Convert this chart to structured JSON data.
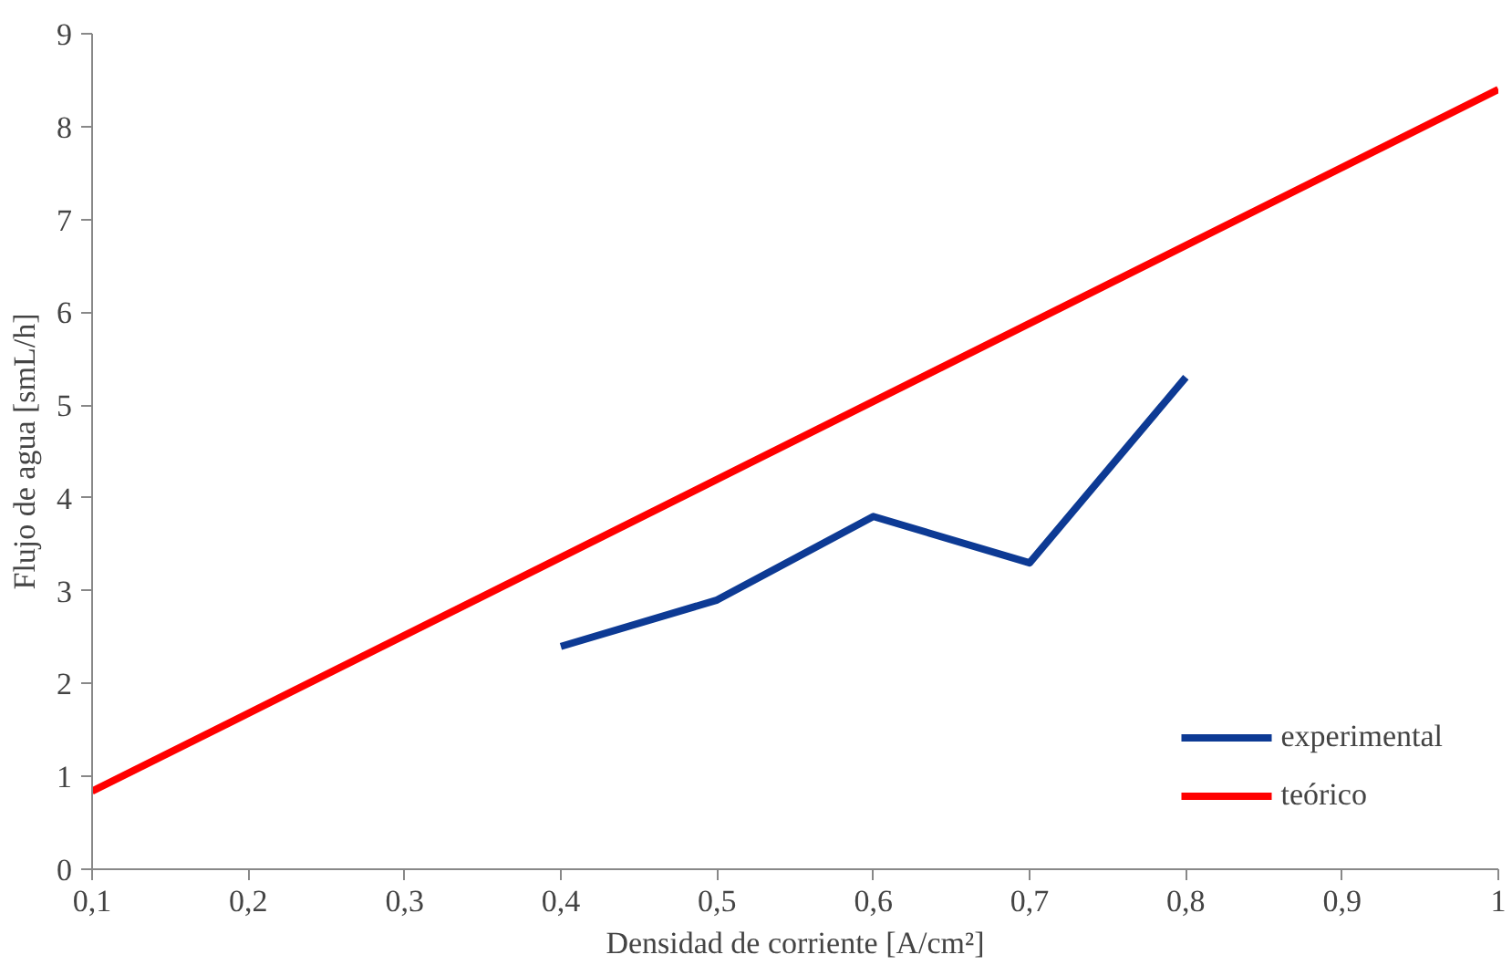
{
  "chart_data": {
    "type": "line",
    "xlabel": "Densidad de corriente [A/cm²]",
    "ylabel": "Flujo de agua [smL/h]",
    "xlim": [
      0.1,
      1
    ],
    "ylim": [
      0,
      9
    ],
    "xticks": [
      {
        "value": 0.1,
        "label": "0,1"
      },
      {
        "value": 0.2,
        "label": "0,2"
      },
      {
        "value": 0.3,
        "label": "0,3"
      },
      {
        "value": 0.4,
        "label": "0,4"
      },
      {
        "value": 0.5,
        "label": "0,5"
      },
      {
        "value": 0.6,
        "label": "0,6"
      },
      {
        "value": 0.7,
        "label": "0,7"
      },
      {
        "value": 0.8,
        "label": "0,8"
      },
      {
        "value": 0.9,
        "label": "0,9"
      },
      1
    ],
    "yticks": [
      0,
      1,
      2,
      3,
      4,
      5,
      6,
      7,
      8,
      9
    ],
    "grid": false,
    "legend": "bottom right",
    "series": [
      {
        "name": "experimental",
        "color": "#0d3a94",
        "x": [
          0.4,
          0.5,
          0.6,
          0.7,
          0.8
        ],
        "values": [
          2.4,
          2.9,
          3.8,
          3.3,
          5.3
        ]
      },
      {
        "name": "teórico",
        "color": "#ff0000",
        "x": [
          0.1,
          1
        ],
        "values": [
          0.84,
          8.4
        ]
      }
    ]
  }
}
